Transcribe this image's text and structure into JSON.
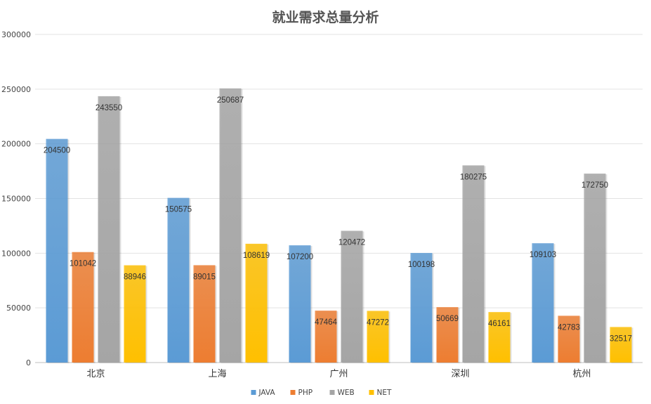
{
  "chart_data": {
    "type": "bar",
    "title": "就业需求总量分析",
    "categories": [
      "北京",
      "上海",
      "广州",
      "深圳",
      "杭州"
    ],
    "series": [
      {
        "name": "JAVA",
        "color": "#5b9bd5",
        "values": [
          204500,
          150575,
          107200,
          100198,
          109103
        ]
      },
      {
        "name": "PHP",
        "color": "#ed7d31",
        "values": [
          101042,
          89015,
          47464,
          50669,
          42783
        ]
      },
      {
        "name": "WEB",
        "color": "#a5a5a5",
        "values": [
          243550,
          250687,
          120472,
          180275,
          172750
        ]
      },
      {
        "name": "NET",
        "color": "#ffc000",
        "values": [
          88946,
          108619,
          47272,
          46161,
          32517
        ]
      }
    ],
    "ylim": [
      0,
      300000
    ],
    "yticks": [
      0,
      50000,
      100000,
      150000,
      200000,
      250000,
      300000
    ],
    "ytick_labels": [
      "0",
      "50000",
      "100000",
      "150000",
      "200000",
      "250000",
      "300000"
    ],
    "grid": true,
    "legend_position": "bottom"
  }
}
